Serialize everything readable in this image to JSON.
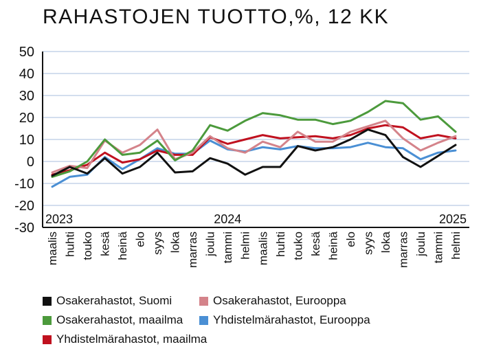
{
  "chart_data": {
    "type": "line",
    "title": "RAHASTOJEN TUOTTO,%, 12 KK",
    "xlabel": "",
    "ylabel": "",
    "ylim": [
      -30,
      50
    ],
    "yticks": [
      50,
      40,
      30,
      20,
      10,
      0,
      -10,
      -20,
      -30
    ],
    "grid": true,
    "legend_position": "bottom",
    "categories": [
      "maalis",
      "huhti",
      "touko",
      "kesä",
      "heinä",
      "elo",
      "syys",
      "loka",
      "marras",
      "joulu",
      "tammi",
      "helmi",
      "maalis",
      "huhti",
      "touko",
      "kesä",
      "heinä",
      "elo",
      "syys",
      "loka",
      "marras",
      "joulu",
      "tammi",
      "helmi"
    ],
    "year_labels": [
      {
        "label": "2023",
        "at_index": 0
      },
      {
        "label": "2024",
        "at_index": 10
      },
      {
        "label": "2025",
        "at_index": 23
      }
    ],
    "series": [
      {
        "name": "Osakerahastot, Suomi",
        "color": "#111111",
        "values": [
          -6.5,
          -2.5,
          -5.5,
          1.5,
          -5.5,
          -2.5,
          4,
          -5,
          -4.5,
          1.5,
          -1,
          -6,
          -2.5,
          -2.5,
          7,
          5,
          6.5,
          10,
          14.5,
          12,
          2,
          -2.5,
          2.5,
          7.5
        ]
      },
      {
        "name": "Osakerahastot, Eurooppa",
        "color": "#d4838a",
        "values": [
          -5,
          -2,
          -3,
          9.5,
          4,
          7.5,
          14.5,
          1,
          4,
          11.5,
          6,
          4,
          9,
          6.5,
          13.5,
          9,
          9,
          13.5,
          16,
          18.5,
          10.5,
          5,
          8.5,
          11.5
        ]
      },
      {
        "name": "Osakerahastot, maailma",
        "color": "#4c9a3c",
        "values": [
          -7,
          -4.5,
          0,
          10,
          3,
          4,
          9.5,
          0.5,
          5,
          16.5,
          14,
          18.5,
          22,
          21,
          19,
          19,
          17,
          18.5,
          22.5,
          27.5,
          26.5,
          19,
          20.5,
          13.5
        ]
      },
      {
        "name": "Yhdistelmärahastot, Eurooppa",
        "color": "#4a8fd4",
        "values": [
          -11.5,
          -7,
          -6,
          2,
          -3.5,
          1,
          6,
          3.5,
          3.5,
          9.5,
          5.5,
          4.5,
          6.5,
          5.5,
          7,
          6,
          6,
          6.5,
          8.5,
          6.5,
          6,
          1,
          4,
          5
        ]
      },
      {
        "name": "Yhdistelmärahastot, maailma",
        "color": "#c0111f",
        "values": [
          -6,
          -4,
          -1.5,
          4,
          -0.5,
          1,
          5,
          3,
          3,
          11,
          8,
          10,
          12,
          10.5,
          11,
          11.5,
          10.5,
          12,
          15,
          16.5,
          15.5,
          10.5,
          12,
          10.5
        ]
      }
    ]
  }
}
